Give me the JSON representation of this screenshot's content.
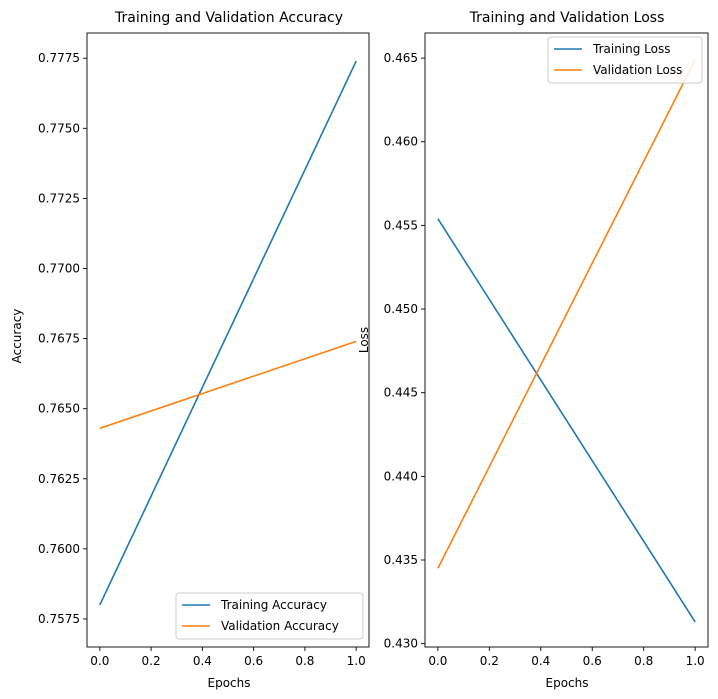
{
  "chart_data": [
    {
      "type": "line",
      "title": "Training and Validation Accuracy",
      "xlabel": "Epochs",
      "ylabel": "Accuracy",
      "xlim": [
        -0.05,
        1.05
      ],
      "ylim": [
        0.7565,
        0.7784
      ],
      "xticks": [
        0.0,
        0.2,
        0.4,
        0.6,
        0.8,
        1.0
      ],
      "xtick_labels": [
        "0.0",
        "0.2",
        "0.4",
        "0.6",
        "0.8",
        "1.0"
      ],
      "yticks": [
        0.7575,
        0.76,
        0.7625,
        0.765,
        0.7675,
        0.77,
        0.7725,
        0.775,
        0.7775
      ],
      "ytick_labels": [
        "0.7575",
        "0.7600",
        "0.7625",
        "0.7650",
        "0.7675",
        "0.7700",
        "0.7725",
        "0.7750",
        "0.7775"
      ],
      "x": [
        0,
        1
      ],
      "series": [
        {
          "name": "Training Accuracy",
          "values": [
            0.758,
            0.7774
          ],
          "color": "#1f77b4"
        },
        {
          "name": "Validation Accuracy",
          "values": [
            0.7643,
            0.7674
          ],
          "color": "#ff7f0e"
        }
      ],
      "legend_position": "lower-right",
      "grid": false
    },
    {
      "type": "line",
      "title": "Training and Validation Loss",
      "xlabel": "Epochs",
      "ylabel": "Loss",
      "xlim": [
        -0.05,
        1.05
      ],
      "ylim": [
        0.4298,
        0.4665
      ],
      "xticks": [
        0.0,
        0.2,
        0.4,
        0.6,
        0.8,
        1.0
      ],
      "xtick_labels": [
        "0.0",
        "0.2",
        "0.4",
        "0.6",
        "0.8",
        "1.0"
      ],
      "yticks": [
        0.43,
        0.435,
        0.44,
        0.445,
        0.45,
        0.455,
        0.46,
        0.465
      ],
      "ytick_labels": [
        "0.430",
        "0.435",
        "0.440",
        "0.445",
        "0.450",
        "0.455",
        "0.460",
        "0.465"
      ],
      "x": [
        0,
        1
      ],
      "series": [
        {
          "name": "Training Loss",
          "values": [
            0.4554,
            0.4313
          ],
          "color": "#1f77b4"
        },
        {
          "name": "Validation Loss",
          "values": [
            0.4345,
            0.4649
          ],
          "color": "#ff7f0e"
        }
      ],
      "legend_position": "upper-right",
      "grid": false
    }
  ]
}
